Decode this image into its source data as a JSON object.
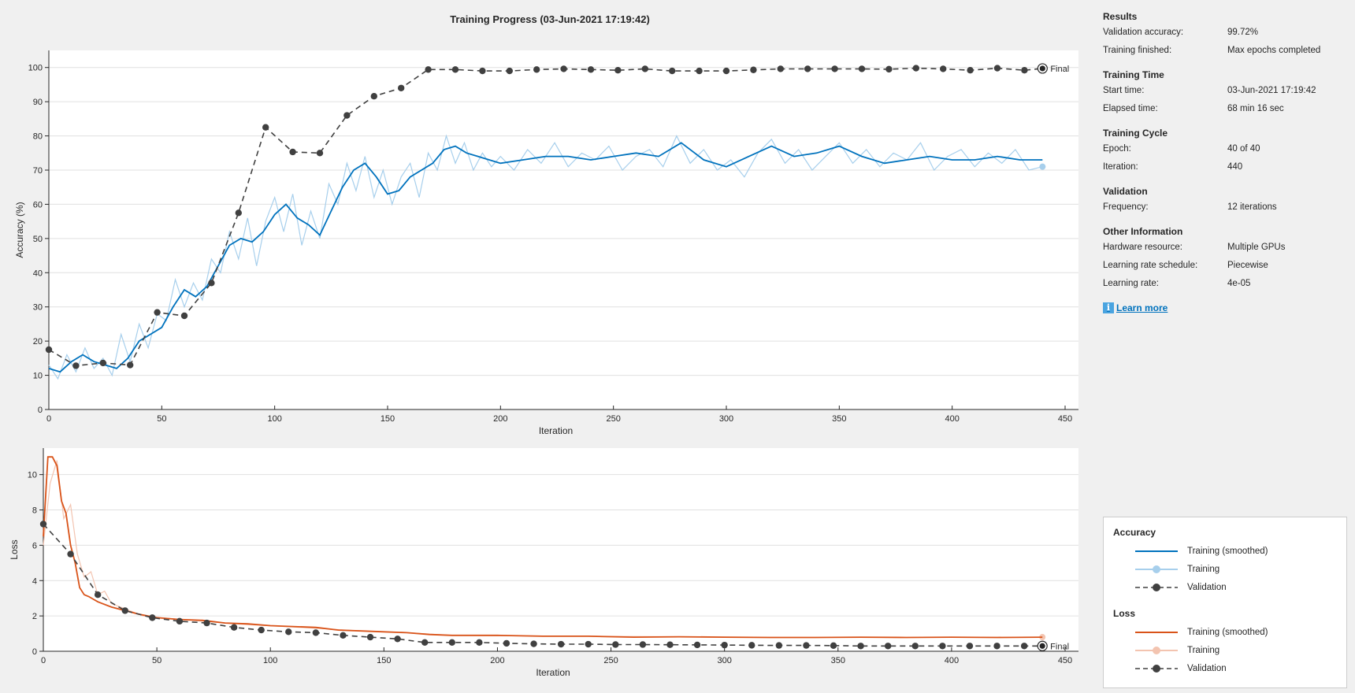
{
  "title": "Training Progress (03-Jun-2021 17:19:42)",
  "info": {
    "sections": [
      {
        "heading": "Results",
        "rows": [
          {
            "key": "Validation accuracy:",
            "value": "99.72%"
          },
          {
            "key": "Training finished:",
            "value": "Max epochs completed"
          }
        ]
      },
      {
        "heading": "Training Time",
        "rows": [
          {
            "key": "Start time:",
            "value": "03-Jun-2021 17:19:42"
          },
          {
            "key": "Elapsed time:",
            "value": "68 min 16 sec"
          }
        ]
      },
      {
        "heading": "Training Cycle",
        "rows": [
          {
            "key": "Epoch:",
            "value": "40 of 40"
          },
          {
            "key": "Iteration:",
            "value": "440"
          }
        ]
      },
      {
        "heading": "Validation",
        "rows": [
          {
            "key": "Frequency:",
            "value": "12 iterations"
          }
        ]
      },
      {
        "heading": "Other Information",
        "rows": [
          {
            "key": "Hardware resource:",
            "value": "Multiple GPUs"
          },
          {
            "key": "Learning rate schedule:",
            "value": "Piecewise"
          },
          {
            "key": "Learning rate:",
            "value": "4e-05"
          }
        ]
      }
    ],
    "learn_more_label": "Learn more"
  },
  "legend": {
    "groups": [
      {
        "title": "Accuracy",
        "entries": [
          {
            "label": "Training (smoothed)",
            "style": "line",
            "color": "#0072bd"
          },
          {
            "label": "Training",
            "style": "line-marker",
            "color": "#a7cfec"
          },
          {
            "label": "Validation",
            "style": "dash-marker",
            "color": "#404040"
          }
        ]
      },
      {
        "title": "Loss",
        "entries": [
          {
            "label": "Training (smoothed)",
            "style": "line",
            "color": "#d95319"
          },
          {
            "label": "Training",
            "style": "line-marker",
            "color": "#f3c4b0"
          },
          {
            "label": "Validation",
            "style": "dash-marker",
            "color": "#404040"
          }
        ]
      }
    ]
  },
  "final_label": "Final",
  "chart_data": [
    {
      "type": "line",
      "name": "accuracy",
      "xlabel": "Iteration",
      "ylabel": "Accuracy (%)",
      "xlim": [
        0,
        450
      ],
      "ylim": [
        0,
        105
      ],
      "xticks": [
        0,
        50,
        100,
        150,
        200,
        250,
        300,
        350,
        400,
        450
      ],
      "yticks": [
        0,
        10,
        20,
        30,
        40,
        50,
        60,
        70,
        80,
        90,
        100
      ],
      "grid": "horizontal",
      "colors": {
        "smoothed": "#0072bd",
        "raw": "#a7cfec",
        "validation": "#404040"
      },
      "smoothed": {
        "x": [
          0,
          5,
          10,
          15,
          20,
          25,
          30,
          35,
          40,
          45,
          50,
          55,
          60,
          65,
          70,
          75,
          80,
          85,
          90,
          95,
          100,
          105,
          110,
          115,
          120,
          125,
          130,
          135,
          140,
          145,
          150,
          155,
          160,
          165,
          170,
          175,
          180,
          185,
          190,
          195,
          200,
          210,
          220,
          230,
          240,
          250,
          260,
          270,
          280,
          290,
          300,
          310,
          320,
          330,
          340,
          350,
          360,
          370,
          380,
          390,
          400,
          410,
          420,
          430,
          440
        ],
        "y": [
          12,
          11,
          14,
          16,
          14,
          13,
          12,
          15,
          20,
          22,
          24,
          30,
          35,
          33,
          36,
          42,
          48,
          50,
          49,
          52,
          57,
          60,
          56,
          54,
          51,
          58,
          65,
          70,
          72,
          68,
          63,
          64,
          68,
          70,
          72,
          76,
          77,
          75,
          74,
          73,
          72,
          73,
          74,
          74,
          73,
          74,
          75,
          74,
          78,
          73,
          71,
          74,
          77,
          74,
          75,
          77,
          74,
          72,
          73,
          74,
          73,
          73,
          74,
          73,
          73
        ]
      },
      "raw": {
        "x": [
          0,
          4,
          8,
          12,
          16,
          20,
          24,
          28,
          32,
          36,
          40,
          44,
          48,
          52,
          56,
          60,
          64,
          68,
          72,
          76,
          80,
          84,
          88,
          92,
          96,
          100,
          104,
          108,
          112,
          116,
          120,
          124,
          128,
          132,
          136,
          140,
          144,
          148,
          152,
          156,
          160,
          164,
          168,
          172,
          176,
          180,
          184,
          188,
          192,
          196,
          200,
          206,
          212,
          218,
          224,
          230,
          236,
          242,
          248,
          254,
          260,
          266,
          272,
          278,
          284,
          290,
          296,
          302,
          308,
          314,
          320,
          326,
          332,
          338,
          344,
          350,
          356,
          362,
          368,
          374,
          380,
          386,
          392,
          398,
          404,
          410,
          416,
          422,
          428,
          434,
          440
        ],
        "y": [
          13,
          9,
          16,
          11,
          18,
          12,
          15,
          10,
          22,
          14,
          25,
          18,
          28,
          26,
          38,
          30,
          37,
          32,
          44,
          40,
          52,
          44,
          56,
          42,
          55,
          62,
          52,
          63,
          48,
          58,
          50,
          66,
          60,
          72,
          64,
          74,
          62,
          70,
          60,
          68,
          72,
          62,
          75,
          70,
          80,
          72,
          78,
          70,
          75,
          71,
          74,
          70,
          76,
          72,
          78,
          71,
          75,
          73,
          77,
          70,
          74,
          76,
          71,
          80,
          72,
          76,
          70,
          73,
          68,
          75,
          79,
          72,
          76,
          70,
          74,
          78,
          72,
          76,
          71,
          75,
          73,
          78,
          70,
          74,
          76,
          71,
          75,
          72,
          76,
          70,
          71
        ]
      },
      "validation": {
        "x": [
          0,
          12,
          24,
          36,
          48,
          60,
          72,
          84,
          96,
          108,
          120,
          132,
          144,
          156,
          168,
          180,
          192,
          204,
          216,
          228,
          240,
          252,
          264,
          276,
          288,
          300,
          312,
          324,
          336,
          348,
          360,
          372,
          384,
          396,
          408,
          420,
          432,
          440
        ],
        "y": [
          17.5,
          12.8,
          13.6,
          13,
          28.4,
          27.4,
          37,
          57.5,
          82.5,
          75.3,
          75,
          86,
          91.6,
          94,
          99.4,
          99.4,
          99,
          99,
          99.4,
          99.6,
          99.4,
          99.2,
          99.6,
          99,
          99,
          99,
          99.3,
          99.6,
          99.6,
          99.6,
          99.6,
          99.5,
          99.8,
          99.6,
          99.2,
          99.8,
          99.2,
          99.72
        ]
      }
    },
    {
      "type": "line",
      "name": "loss",
      "xlabel": "Iteration",
      "ylabel": "Loss",
      "xlim": [
        0,
        450
      ],
      "ylim": [
        0,
        11.5
      ],
      "xticks": [
        0,
        50,
        100,
        150,
        200,
        250,
        300,
        350,
        400,
        450
      ],
      "yticks": [
        0,
        2,
        4,
        6,
        8,
        10
      ],
      "grid": "horizontal",
      "colors": {
        "smoothed": "#d95319",
        "raw": "#f3c4b0",
        "validation": "#404040"
      },
      "smoothed": {
        "x": [
          0,
          2,
          4,
          6,
          8,
          10,
          12,
          14,
          16,
          18,
          20,
          24,
          30,
          36,
          42,
          50,
          60,
          70,
          80,
          90,
          100,
          110,
          120,
          130,
          140,
          150,
          160,
          170,
          180,
          190,
          200,
          220,
          240,
          260,
          280,
          300,
          320,
          340,
          360,
          380,
          400,
          420,
          440
        ],
        "y": [
          6.5,
          11,
          11,
          10.5,
          8.5,
          7.8,
          6,
          5,
          3.6,
          3.2,
          3.1,
          2.8,
          2.5,
          2.3,
          2.1,
          1.9,
          1.8,
          1.75,
          1.6,
          1.55,
          1.45,
          1.4,
          1.35,
          1.2,
          1.15,
          1.1,
          1.05,
          0.95,
          0.9,
          0.9,
          0.9,
          0.85,
          0.85,
          0.8,
          0.82,
          0.8,
          0.78,
          0.78,
          0.8,
          0.78,
          0.8,
          0.78,
          0.8
        ]
      },
      "raw": {
        "x": [
          0,
          3,
          6,
          9,
          12,
          15,
          18,
          21,
          24,
          27,
          30,
          36,
          44,
          52,
          60,
          70,
          80,
          90,
          100,
          120,
          140,
          160,
          180,
          200,
          240,
          280,
          320,
          360,
          400,
          440
        ],
        "y": [
          6,
          9.5,
          10.8,
          7.5,
          8.3,
          5.5,
          4.2,
          4.5,
          3.2,
          3.4,
          2.7,
          2.4,
          2,
          1.9,
          1.8,
          1.7,
          1.6,
          1.5,
          1.45,
          1.3,
          1.15,
          1.05,
          0.9,
          0.88,
          0.85,
          0.82,
          0.8,
          0.78,
          0.8,
          0.8
        ]
      },
      "validation": {
        "x": [
          0,
          12,
          24,
          36,
          48,
          60,
          72,
          84,
          96,
          108,
          120,
          132,
          144,
          156,
          168,
          180,
          192,
          204,
          216,
          228,
          240,
          252,
          264,
          276,
          288,
          300,
          312,
          324,
          336,
          348,
          360,
          372,
          384,
          396,
          408,
          420,
          432,
          440
        ],
        "y": [
          7.2,
          5.5,
          3.2,
          2.3,
          1.9,
          1.7,
          1.6,
          1.35,
          1.2,
          1.1,
          1.05,
          0.9,
          0.8,
          0.7,
          0.5,
          0.5,
          0.5,
          0.45,
          0.42,
          0.4,
          0.4,
          0.38,
          0.38,
          0.37,
          0.36,
          0.35,
          0.34,
          0.33,
          0.33,
          0.32,
          0.3,
          0.3,
          0.3,
          0.3,
          0.3,
          0.3,
          0.3,
          0.3
        ]
      }
    }
  ]
}
